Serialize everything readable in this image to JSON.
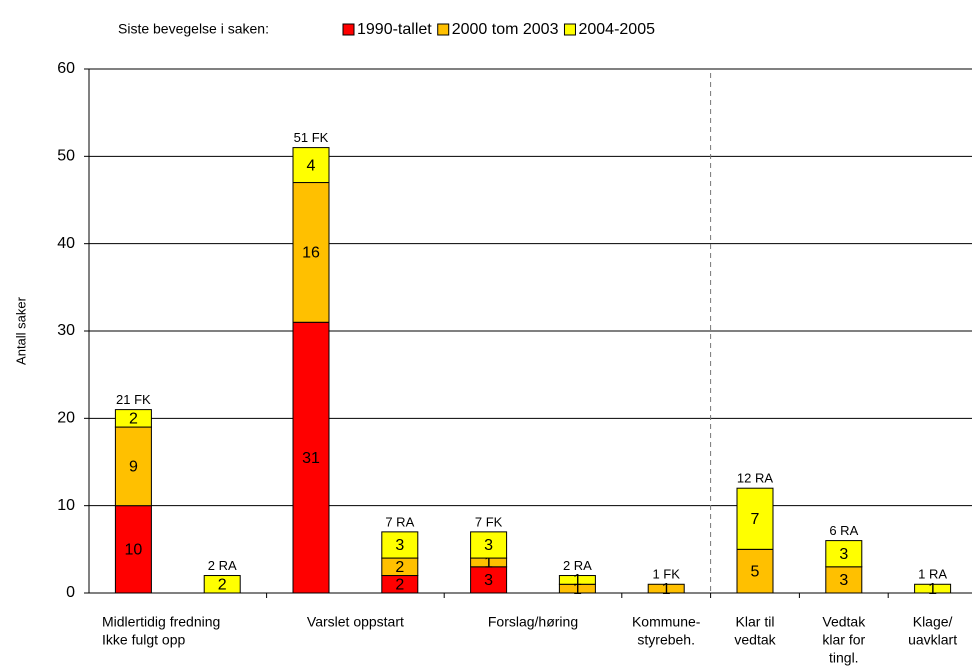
{
  "chart_data": {
    "type": "stacked_bar",
    "legend_title": "Siste bevegelse i saken:",
    "y_label": "Antall saker",
    "ylim": [
      0,
      60
    ],
    "yticks": [
      0,
      10,
      20,
      30,
      40,
      50,
      60
    ],
    "grid": true,
    "categories": [
      [
        "Midlertidig fredning",
        "Ikke fulgt opp"
      ],
      null,
      [
        "Varslet oppstart"
      ],
      null,
      [
        "Forslag/høring"
      ],
      null,
      [
        "Kommune-",
        "styrebeh."
      ],
      [
        "Klar til",
        "vedtak"
      ],
      [
        "Vedtak",
        "klar for",
        "tingl."
      ],
      [
        "Klage/",
        "uavklart"
      ]
    ],
    "series": [
      {
        "name": "1990-tallet",
        "color": "#ff0000",
        "values": [
          10,
          null,
          31,
          2,
          3,
          null,
          null,
          null,
          null,
          null
        ]
      },
      {
        "name": "2000 tom 2003",
        "color": "#ffc000",
        "values": [
          9,
          null,
          16,
          2,
          1,
          1,
          1,
          5,
          3,
          null
        ]
      },
      {
        "name": "2004-2005",
        "color": "#ffff00",
        "values": [
          2,
          2,
          4,
          3,
          3,
          1,
          null,
          7,
          3,
          1
        ]
      }
    ],
    "total_labels": [
      "21 FK",
      "2 RA",
      "51 FK",
      "7 RA",
      "7 FK",
      "2 RA",
      "1 FK",
      "12 RA",
      "6 RA",
      "1 RA"
    ]
  }
}
